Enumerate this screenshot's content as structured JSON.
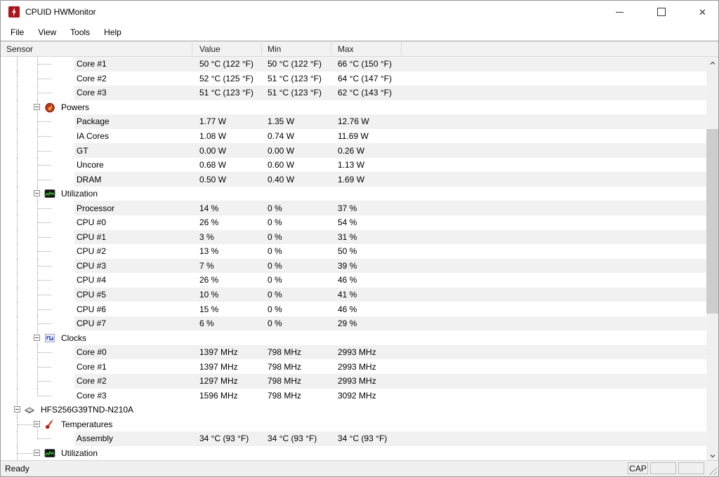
{
  "window": {
    "title": "CPUID HWMonitor"
  },
  "menu": {
    "items": [
      "File",
      "View",
      "Tools",
      "Help"
    ]
  },
  "header": {
    "columns": [
      "Sensor",
      "Value",
      "Min",
      "Max"
    ]
  },
  "rows": [
    {
      "label": "Core #1",
      "value": "50 °C  (122 °F)",
      "min": "50 °C  (122 °F)",
      "max": "66 °C  (150 °F)",
      "kind": "leaf",
      "icon": null,
      "striped": true,
      "t1": true,
      "t2": "full",
      "stub52": true,
      "stub23": false
    },
    {
      "label": "Core #2",
      "value": "52 °C  (125 °F)",
      "min": "51 °C  (123 °F)",
      "max": "64 °C  (147 °F)",
      "kind": "leaf",
      "icon": null,
      "striped": false,
      "t1": true,
      "t2": "full",
      "stub52": true,
      "stub23": false
    },
    {
      "label": "Core #3",
      "value": "51 °C  (123 °F)",
      "min": "51 °C  (123 °F)",
      "max": "62 °C  (143 °F)",
      "kind": "leaf",
      "icon": null,
      "striped": true,
      "t1": true,
      "t2": "full",
      "stub52": true,
      "stub23": false
    },
    {
      "label": "Powers",
      "value": "",
      "min": "",
      "max": "",
      "kind": "group",
      "icon": "flame",
      "striped": false,
      "t1": true,
      "t2": "full",
      "stub52": false,
      "stub23": false
    },
    {
      "label": "Package",
      "value": "1.77 W",
      "min": "1.35 W",
      "max": "12.76 W",
      "kind": "leaf",
      "icon": null,
      "striped": true,
      "t1": true,
      "t2": "full",
      "stub52": true,
      "stub23": false
    },
    {
      "label": "IA Cores",
      "value": "1.08 W",
      "min": "0.74 W",
      "max": "11.69 W",
      "kind": "leaf",
      "icon": null,
      "striped": false,
      "t1": true,
      "t2": "full",
      "stub52": true,
      "stub23": false
    },
    {
      "label": "GT",
      "value": "0.00 W",
      "min": "0.00 W",
      "max": "0.26 W",
      "kind": "leaf",
      "icon": null,
      "striped": true,
      "t1": true,
      "t2": "full",
      "stub52": true,
      "stub23": false
    },
    {
      "label": "Uncore",
      "value": "0.68 W",
      "min": "0.60 W",
      "max": "1.13 W",
      "kind": "leaf",
      "icon": null,
      "striped": false,
      "t1": true,
      "t2": "full",
      "stub52": true,
      "stub23": false
    },
    {
      "label": "DRAM",
      "value": "0.50 W",
      "min": "0.40 W",
      "max": "1.69 W",
      "kind": "leaf",
      "icon": null,
      "striped": true,
      "t1": true,
      "t2": "full",
      "stub52": true,
      "stub23": false
    },
    {
      "label": "Utilization",
      "value": "",
      "min": "",
      "max": "",
      "kind": "group",
      "icon": "graph",
      "striped": false,
      "t1": true,
      "t2": "full",
      "stub52": false,
      "stub23": false
    },
    {
      "label": "Processor",
      "value": "14 %",
      "min": "0 %",
      "max": "37 %",
      "kind": "leaf",
      "icon": null,
      "striped": true,
      "t1": true,
      "t2": "full",
      "stub52": true,
      "stub23": false
    },
    {
      "label": "CPU #0",
      "value": "26 %",
      "min": "0 %",
      "max": "54 %",
      "kind": "leaf",
      "icon": null,
      "striped": false,
      "t1": true,
      "t2": "full",
      "stub52": true,
      "stub23": false
    },
    {
      "label": "CPU #1",
      "value": "3 %",
      "min": "0 %",
      "max": "31 %",
      "kind": "leaf",
      "icon": null,
      "striped": true,
      "t1": true,
      "t2": "full",
      "stub52": true,
      "stub23": false
    },
    {
      "label": "CPU #2",
      "value": "13 %",
      "min": "0 %",
      "max": "50 %",
      "kind": "leaf",
      "icon": null,
      "striped": false,
      "t1": true,
      "t2": "full",
      "stub52": true,
      "stub23": false
    },
    {
      "label": "CPU #3",
      "value": "7 %",
      "min": "0 %",
      "max": "39 %",
      "kind": "leaf",
      "icon": null,
      "striped": true,
      "t1": true,
      "t2": "full",
      "stub52": true,
      "stub23": false
    },
    {
      "label": "CPU #4",
      "value": "26 %",
      "min": "0 %",
      "max": "46 %",
      "kind": "leaf",
      "icon": null,
      "striped": false,
      "t1": true,
      "t2": "full",
      "stub52": true,
      "stub23": false
    },
    {
      "label": "CPU #5",
      "value": "10 %",
      "min": "0 %",
      "max": "41 %",
      "kind": "leaf",
      "icon": null,
      "striped": true,
      "t1": true,
      "t2": "full",
      "stub52": true,
      "stub23": false
    },
    {
      "label": "CPU #6",
      "value": "15 %",
      "min": "0 %",
      "max": "46 %",
      "kind": "leaf",
      "icon": null,
      "striped": false,
      "t1": true,
      "t2": "full",
      "stub52": true,
      "stub23": false
    },
    {
      "label": "CPU #7",
      "value": "6 %",
      "min": "0 %",
      "max": "29 %",
      "kind": "leaf",
      "icon": null,
      "striped": true,
      "t1": true,
      "t2": "full",
      "stub52": true,
      "stub23": false
    },
    {
      "label": "Clocks",
      "value": "",
      "min": "",
      "max": "",
      "kind": "group",
      "icon": "wave",
      "striped": false,
      "t1": true,
      "t2": "full",
      "stub52": false,
      "stub23": false
    },
    {
      "label": "Core #0",
      "value": "1397 MHz",
      "min": "798 MHz",
      "max": "2993 MHz",
      "kind": "leaf",
      "icon": null,
      "striped": true,
      "t1": true,
      "t2": "full",
      "stub52": true,
      "stub23": false
    },
    {
      "label": "Core #1",
      "value": "1397 MHz",
      "min": "798 MHz",
      "max": "2993 MHz",
      "kind": "leaf",
      "icon": null,
      "striped": false,
      "t1": true,
      "t2": "full",
      "stub52": true,
      "stub23": false
    },
    {
      "label": "Core #2",
      "value": "1297 MHz",
      "min": "798 MHz",
      "max": "2993 MHz",
      "kind": "leaf",
      "icon": null,
      "striped": true,
      "t1": true,
      "t2": "full",
      "stub52": true,
      "stub23": false
    },
    {
      "label": "Core #3",
      "value": "1596 MHz",
      "min": "798 MHz",
      "max": "3092 MHz",
      "kind": "leaf",
      "icon": null,
      "striped": false,
      "t1": true,
      "t2": "half",
      "stub52": true,
      "stub23": false
    },
    {
      "label": "HFS256G39TND-N210A",
      "value": "",
      "min": "",
      "max": "",
      "kind": "device",
      "icon": "disk",
      "striped": false,
      "t1": true,
      "t2": "none",
      "stub52": false,
      "stub23": false
    },
    {
      "label": "Temperatures",
      "value": "",
      "min": "",
      "max": "",
      "kind": "group",
      "icon": "thermo",
      "striped": false,
      "t1": true,
      "t2": "lower",
      "stub52": false,
      "stub23": true
    },
    {
      "label": "Assembly",
      "value": "34 °C  (93 °F)",
      "min": "34 °C  (93 °F)",
      "max": "34 °C  (93 °F)",
      "kind": "leaf",
      "icon": null,
      "striped": true,
      "t1": true,
      "t2": "half",
      "stub52": true,
      "stub23": false
    },
    {
      "label": "Utilization",
      "value": "",
      "min": "",
      "max": "",
      "kind": "group",
      "icon": "graph",
      "striped": false,
      "t1": true,
      "t2": "none",
      "stub52": false,
      "stub23": true
    }
  ],
  "statusbar": {
    "ready": "Ready",
    "cap": "CAP",
    "pane2": "",
    "pane3": ""
  },
  "colors": {
    "brand_red": "#b01217",
    "stripe": "#f1f1f1",
    "graph_green": "#2fd12f",
    "wave_blue": "#3a4fd0",
    "thermo_red": "#c21807"
  }
}
